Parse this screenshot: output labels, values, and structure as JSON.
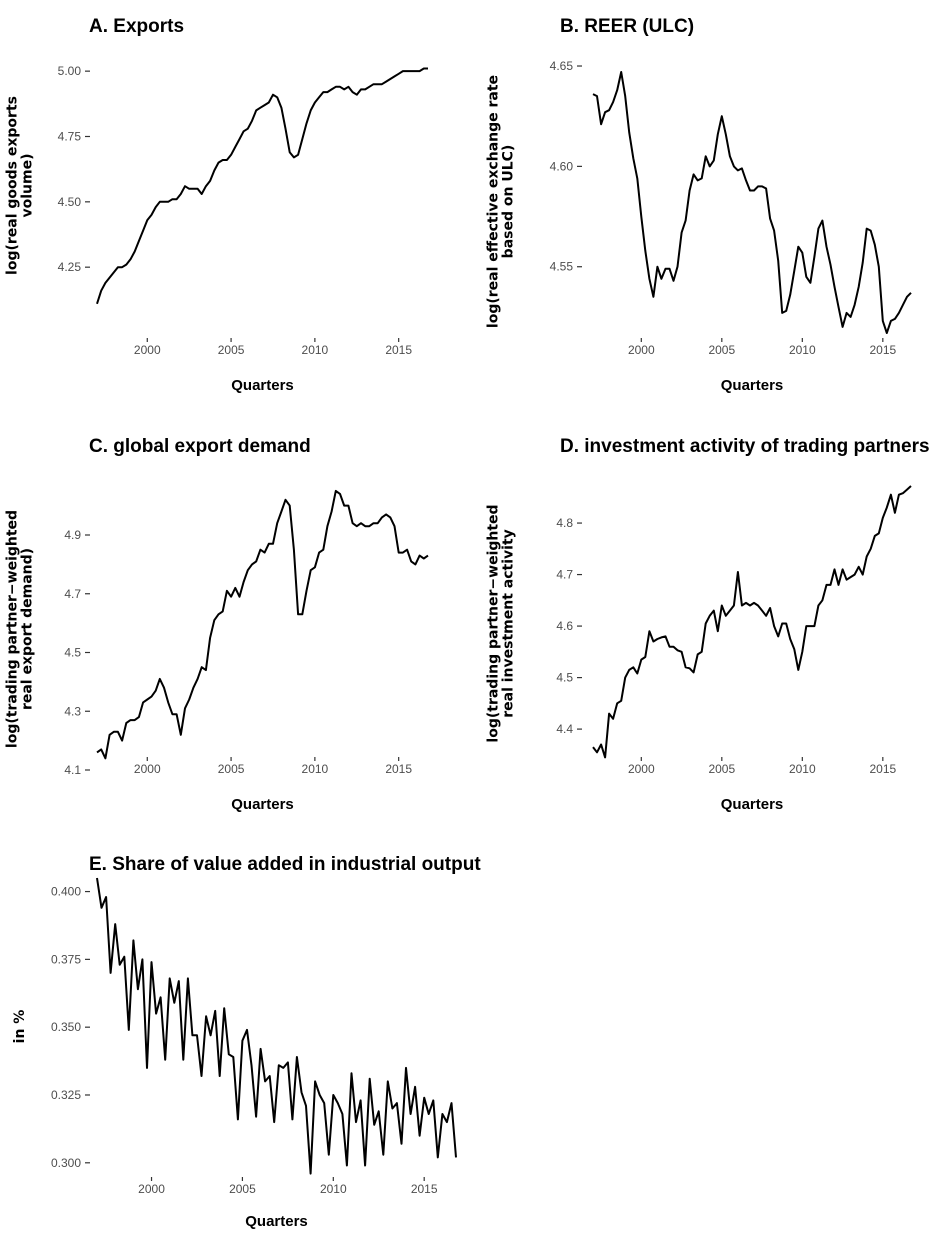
{
  "chart_data": [
    {
      "type": "line",
      "title": "A. Exports",
      "xlabel": "Quarters",
      "ylabel": [
        "log(real goods exports",
        "volume)"
      ],
      "xlim": [
        1997.0,
        2016.75
      ],
      "ylim": [
        4.09,
        5.035
      ],
      "xticks": [
        2000,
        2005,
        2010,
        2015
      ],
      "yticks": [
        4.25,
        4.5,
        4.75,
        5.0
      ],
      "ytick_labels": [
        "4.25",
        "4.50",
        "4.75",
        "5.00"
      ],
      "series": [
        {
          "x": [
            1997.0,
            1997.25,
            1997.5,
            1997.75,
            1998.0,
            1998.25,
            1998.5,
            1998.75,
            1999.0,
            1999.25,
            1999.5,
            1999.75,
            2000.0,
            2000.25,
            2000.5,
            2000.75,
            2001.0,
            2001.25,
            2001.5,
            2001.75,
            2002.0,
            2002.25,
            2002.5,
            2002.75,
            2003.0,
            2003.25,
            2003.5,
            2003.75,
            2004.0,
            2004.25,
            2004.5,
            2004.75,
            2005.0,
            2005.25,
            2005.5,
            2005.75,
            2006.0,
            2006.25,
            2006.5,
            2006.75,
            2007.0,
            2007.25,
            2007.5,
            2007.75,
            2008.0,
            2008.25,
            2008.5,
            2008.75,
            2009.0,
            2009.25,
            2009.5,
            2009.75,
            2010.0,
            2010.25,
            2010.5,
            2010.75,
            2011.0,
            2011.25,
            2011.5,
            2011.75,
            2012.0,
            2012.25,
            2012.5,
            2012.75,
            2013.0,
            2013.25,
            2013.5,
            2013.75,
            2014.0,
            2014.25,
            2014.5,
            2014.75,
            2015.0,
            2015.25,
            2015.5,
            2015.75,
            2016.0,
            2016.25,
            2016.5,
            2016.75
          ],
          "y": [
            4.11,
            4.16,
            4.19,
            4.21,
            4.23,
            4.25,
            4.25,
            4.26,
            4.28,
            4.31,
            4.35,
            4.39,
            4.43,
            4.45,
            4.48,
            4.5,
            4.5,
            4.5,
            4.51,
            4.51,
            4.53,
            4.56,
            4.55,
            4.55,
            4.55,
            4.53,
            4.56,
            4.58,
            4.62,
            4.65,
            4.66,
            4.66,
            4.68,
            4.71,
            4.74,
            4.77,
            4.78,
            4.81,
            4.85,
            4.86,
            4.87,
            4.88,
            4.91,
            4.9,
            4.86,
            4.78,
            4.69,
            4.67,
            4.68,
            4.74,
            4.8,
            4.85,
            4.88,
            4.9,
            4.92,
            4.92,
            4.93,
            4.94,
            4.94,
            4.93,
            4.94,
            4.92,
            4.91,
            4.93,
            4.93,
            4.94,
            4.95,
            4.95,
            4.95,
            4.96,
            4.97,
            4.98,
            4.99,
            5.0,
            5.0,
            5.0,
            5.0,
            5.0,
            5.01,
            5.01
          ]
        }
      ]
    },
    {
      "type": "line",
      "title": "B. REER (ULC)",
      "xlabel": "Quarters",
      "ylabel": [
        "log(real effective exchange rate",
        "based on ULC)"
      ],
      "xlim": [
        1997.0,
        2016.75
      ],
      "ylim": [
        4.513,
        4.652
      ],
      "xticks": [
        2000,
        2005,
        2010,
        2015
      ],
      "yticks": [
        4.55,
        4.6,
        4.65
      ],
      "ytick_labels": [
        "4.55",
        "4.60",
        "4.65"
      ],
      "series": [
        {
          "x": [
            1997.0,
            1997.25,
            1997.5,
            1997.75,
            1998.0,
            1998.25,
            1998.5,
            1998.75,
            1999.0,
            1999.25,
            1999.5,
            1999.75,
            2000.0,
            2000.25,
            2000.5,
            2000.75,
            2001.0,
            2001.25,
            2001.5,
            2001.75,
            2002.0,
            2002.25,
            2002.5,
            2002.75,
            2003.0,
            2003.25,
            2003.5,
            2003.75,
            2004.0,
            2004.25,
            2004.5,
            2004.75,
            2005.0,
            2005.25,
            2005.5,
            2005.75,
            2006.0,
            2006.25,
            2006.5,
            2006.75,
            2007.0,
            2007.25,
            2007.5,
            2007.75,
            2008.0,
            2008.25,
            2008.5,
            2008.75,
            2009.0,
            2009.25,
            2009.5,
            2009.75,
            2010.0,
            2010.25,
            2010.5,
            2010.75,
            2011.0,
            2011.25,
            2011.5,
            2011.75,
            2012.0,
            2012.25,
            2012.5,
            2012.75,
            2013.0,
            2013.25,
            2013.5,
            2013.75,
            2014.0,
            2014.25,
            2014.5,
            2014.75,
            2015.0,
            2015.25,
            2015.5,
            2015.75,
            2016.0,
            2016.25,
            2016.5,
            2016.75
          ],
          "y": [
            4.636,
            4.635,
            4.621,
            4.627,
            4.628,
            4.632,
            4.638,
            4.647,
            4.635,
            4.617,
            4.604,
            4.594,
            4.575,
            4.558,
            4.544,
            4.535,
            4.55,
            4.544,
            4.549,
            4.549,
            4.543,
            4.55,
            4.567,
            4.573,
            4.588,
            4.596,
            4.593,
            4.594,
            4.605,
            4.6,
            4.603,
            4.616,
            4.625,
            4.616,
            4.605,
            4.6,
            4.598,
            4.599,
            4.593,
            4.588,
            4.588,
            4.59,
            4.59,
            4.589,
            4.574,
            4.568,
            4.553,
            4.527,
            4.528,
            4.536,
            4.548,
            4.56,
            4.557,
            4.545,
            4.542,
            4.555,
            4.569,
            4.573,
            4.56,
            4.551,
            4.54,
            4.53,
            4.52,
            4.527,
            4.525,
            4.531,
            4.54,
            4.552,
            4.569,
            4.568,
            4.561,
            4.55,
            4.523,
            4.517,
            4.523,
            4.524,
            4.527,
            4.531,
            4.535,
            4.537
          ]
        }
      ]
    },
    {
      "type": "line",
      "title": "C. global export demand",
      "xlabel": "Quarters",
      "ylabel": [
        "log(trading partner−weighted",
        "real export demand)"
      ],
      "xlim": [
        1997.0,
        2016.75
      ],
      "ylim": [
        4.1,
        5.06
      ],
      "xticks": [
        2000,
        2005,
        2010,
        2015
      ],
      "yticks": [
        4.1,
        4.3,
        4.5,
        4.7,
        4.9
      ],
      "ytick_labels": [
        "4.1",
        "4.3",
        "4.5",
        "4.7",
        "4.9"
      ],
      "series": [
        {
          "x": [
            1997.0,
            1997.25,
            1997.5,
            1997.75,
            1998.0,
            1998.25,
            1998.5,
            1998.75,
            1999.0,
            1999.25,
            1999.5,
            1999.75,
            2000.0,
            2000.25,
            2000.5,
            2000.75,
            2001.0,
            2001.25,
            2001.5,
            2001.75,
            2002.0,
            2002.25,
            2002.5,
            2002.75,
            2003.0,
            2003.25,
            2003.5,
            2003.75,
            2004.0,
            2004.25,
            2004.5,
            2004.75,
            2005.0,
            2005.25,
            2005.5,
            2005.75,
            2006.0,
            2006.25,
            2006.5,
            2006.75,
            2007.0,
            2007.25,
            2007.5,
            2007.75,
            2008.0,
            2008.25,
            2008.5,
            2008.75,
            2009.0,
            2009.25,
            2009.5,
            2009.75,
            2010.0,
            2010.25,
            2010.5,
            2010.75,
            2011.0,
            2011.25,
            2011.5,
            2011.75,
            2012.0,
            2012.25,
            2012.5,
            2012.75,
            2013.0,
            2013.25,
            2013.5,
            2013.75,
            2014.0,
            2014.25,
            2014.5,
            2014.75,
            2015.0,
            2015.25,
            2015.5,
            2015.75,
            2016.0,
            2016.25,
            2016.5,
            2016.75
          ],
          "y": [
            4.16,
            4.17,
            4.14,
            4.22,
            4.23,
            4.23,
            4.2,
            4.26,
            4.27,
            4.27,
            4.28,
            4.33,
            4.34,
            4.35,
            4.37,
            4.41,
            4.38,
            4.33,
            4.29,
            4.29,
            4.22,
            4.31,
            4.34,
            4.38,
            4.41,
            4.45,
            4.44,
            4.55,
            4.61,
            4.63,
            4.64,
            4.71,
            4.69,
            4.72,
            4.69,
            4.74,
            4.78,
            4.8,
            4.81,
            4.85,
            4.84,
            4.87,
            4.87,
            4.94,
            4.98,
            5.02,
            5.0,
            4.85,
            4.63,
            4.63,
            4.71,
            4.78,
            4.79,
            4.84,
            4.85,
            4.93,
            4.98,
            5.05,
            5.04,
            5.0,
            5.0,
            4.94,
            4.93,
            4.94,
            4.93,
            4.93,
            4.94,
            4.94,
            4.96,
            4.97,
            4.96,
            4.93,
            4.84,
            4.84,
            4.85,
            4.81,
            4.8,
            4.83,
            4.82,
            4.83
          ]
        }
      ]
    },
    {
      "type": "line",
      "title": "D. investment activity of trading partners",
      "xlabel": "Quarters",
      "ylabel": [
        "log(trading partner−weighted",
        "real investment activity"
      ],
      "xlim": [
        1997.0,
        2016.75
      ],
      "ylim": [
        4.34,
        4.87
      ],
      "xticks": [
        2000,
        2005,
        2010,
        2015
      ],
      "yticks": [
        4.4,
        4.5,
        4.6,
        4.7,
        4.8
      ],
      "ytick_labels": [
        "4.4",
        "4.5",
        "4.6",
        "4.7",
        "4.8"
      ],
      "series": [
        {
          "x": [
            1997.0,
            1997.25,
            1997.5,
            1997.75,
            1998.0,
            1998.25,
            1998.5,
            1998.75,
            1999.0,
            1999.25,
            1999.5,
            1999.75,
            2000.0,
            2000.25,
            2000.5,
            2000.75,
            2001.0,
            2001.25,
            2001.5,
            2001.75,
            2002.0,
            2002.25,
            2002.5,
            2002.75,
            2003.0,
            2003.25,
            2003.5,
            2003.75,
            2004.0,
            2004.25,
            2004.5,
            2004.75,
            2005.0,
            2005.25,
            2005.5,
            2005.75,
            2006.0,
            2006.25,
            2006.5,
            2006.75,
            2007.0,
            2007.25,
            2007.5,
            2007.75,
            2008.0,
            2008.25,
            2008.5,
            2008.75,
            2009.0,
            2009.25,
            2009.5,
            2009.75,
            2010.0,
            2010.25,
            2010.5,
            2010.75,
            2011.0,
            2011.25,
            2011.5,
            2011.75,
            2012.0,
            2012.25,
            2012.5,
            2012.75,
            2013.0,
            2013.25,
            2013.5,
            2013.75,
            2014.0,
            2014.25,
            2014.5,
            2014.75,
            2015.0,
            2015.25,
            2015.5,
            2015.75,
            2016.0,
            2016.25,
            2016.5,
            2016.75
          ],
          "y": [
            4.365,
            4.355,
            4.37,
            4.345,
            4.43,
            4.42,
            4.45,
            4.455,
            4.5,
            4.515,
            4.52,
            4.508,
            4.535,
            4.54,
            4.59,
            4.57,
            4.575,
            4.578,
            4.58,
            4.56,
            4.56,
            4.553,
            4.55,
            4.52,
            4.518,
            4.51,
            4.545,
            4.55,
            4.605,
            4.62,
            4.63,
            4.59,
            4.64,
            4.62,
            4.63,
            4.64,
            4.705,
            4.64,
            4.645,
            4.64,
            4.645,
            4.64,
            4.63,
            4.62,
            4.635,
            4.6,
            4.58,
            4.605,
            4.605,
            4.575,
            4.555,
            4.515,
            4.55,
            4.6,
            4.6,
            4.6,
            4.64,
            4.65,
            4.68,
            4.68,
            4.71,
            4.68,
            4.71,
            4.69,
            4.695,
            4.7,
            4.715,
            4.7,
            4.735,
            4.75,
            4.775,
            4.78,
            4.81,
            4.83,
            4.855,
            4.82,
            4.855,
            4.858,
            4.865,
            4.872
          ]
        }
      ]
    },
    {
      "type": "line",
      "title": "E. Share of value added in industrial output",
      "xlabel": "Quarters",
      "ylabel": [
        "in %"
      ],
      "xlim": [
        1997.0,
        2016.75
      ],
      "ylim": [
        0.2955,
        0.405
      ],
      "xticks": [
        2000,
        2005,
        2010,
        2015
      ],
      "yticks": [
        0.3,
        0.325,
        0.35,
        0.375,
        0.4
      ],
      "ytick_labels": [
        "0.300",
        "0.325",
        "0.350",
        "0.375",
        "0.400"
      ],
      "series": [
        {
          "x": [
            1997.0,
            1997.25,
            1997.5,
            1997.75,
            1998.0,
            1998.25,
            1998.5,
            1998.75,
            1999.0,
            1999.25,
            1999.5,
            1999.75,
            2000.0,
            2000.25,
            2000.5,
            2000.75,
            2001.0,
            2001.25,
            2001.5,
            2001.75,
            2002.0,
            2002.25,
            2002.5,
            2002.75,
            2003.0,
            2003.25,
            2003.5,
            2003.75,
            2004.0,
            2004.25,
            2004.5,
            2004.75,
            2005.0,
            2005.25,
            2005.5,
            2005.75,
            2006.0,
            2006.25,
            2006.5,
            2006.75,
            2007.0,
            2007.25,
            2007.5,
            2007.75,
            2008.0,
            2008.25,
            2008.5,
            2008.75,
            2009.0,
            2009.25,
            2009.5,
            2009.75,
            2010.0,
            2010.25,
            2010.5,
            2010.75,
            2011.0,
            2011.25,
            2011.5,
            2011.75,
            2012.0,
            2012.25,
            2012.5,
            2012.75,
            2013.0,
            2013.25,
            2013.5,
            2013.75,
            2014.0,
            2014.25,
            2014.5,
            2014.75,
            2015.0,
            2015.25,
            2015.5,
            2015.75,
            2016.0,
            2016.25,
            2016.5,
            2016.75
          ],
          "y": [
            0.405,
            0.394,
            0.398,
            0.37,
            0.388,
            0.373,
            0.376,
            0.349,
            0.382,
            0.364,
            0.375,
            0.335,
            0.374,
            0.355,
            0.361,
            0.338,
            0.368,
            0.359,
            0.367,
            0.338,
            0.368,
            0.347,
            0.347,
            0.332,
            0.354,
            0.347,
            0.356,
            0.332,
            0.357,
            0.34,
            0.339,
            0.316,
            0.345,
            0.349,
            0.336,
            0.317,
            0.342,
            0.33,
            0.332,
            0.315,
            0.336,
            0.335,
            0.337,
            0.316,
            0.339,
            0.326,
            0.321,
            0.296,
            0.33,
            0.325,
            0.322,
            0.303,
            0.325,
            0.322,
            0.318,
            0.299,
            0.333,
            0.315,
            0.323,
            0.299,
            0.331,
            0.314,
            0.319,
            0.303,
            0.33,
            0.32,
            0.322,
            0.307,
            0.335,
            0.318,
            0.328,
            0.31,
            0.324,
            0.318,
            0.323,
            0.302,
            0.318,
            0.315,
            0.322,
            0.302
          ]
        }
      ]
    }
  ]
}
